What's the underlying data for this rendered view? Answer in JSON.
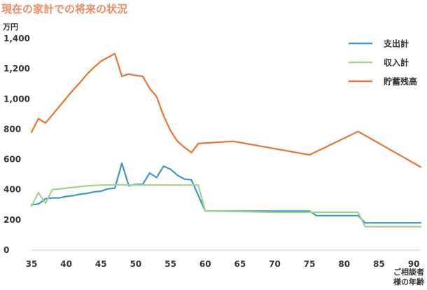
{
  "chart_data": {
    "type": "line",
    "title": "現在の家計での将来の状況",
    "ylabel": "万円",
    "xlabel": "ご相談者\n様の年齢",
    "xlim": [
      35,
      91
    ],
    "ylim": [
      0,
      1400
    ],
    "xticks": [
      35,
      40,
      45,
      50,
      55,
      60,
      65,
      70,
      75,
      80,
      85,
      90
    ],
    "yticks": [
      0,
      200,
      400,
      600,
      800,
      1000,
      1200,
      1400
    ],
    "ytick_labels": [
      "0",
      "200",
      "400",
      "600",
      "800",
      "1,000",
      "1,200",
      "1,400"
    ],
    "grid": false,
    "legend_position": "top-right",
    "series": [
      {
        "name": "支出計",
        "color": "#3a98c6",
        "points": [
          [
            35,
            300
          ],
          [
            36,
            305
          ],
          [
            37,
            340
          ],
          [
            38,
            345
          ],
          [
            39,
            345
          ],
          [
            40,
            355
          ],
          [
            41,
            360
          ],
          [
            42,
            370
          ],
          [
            43,
            375
          ],
          [
            44,
            385
          ],
          [
            45,
            390
          ],
          [
            46,
            405
          ],
          [
            47,
            410
          ],
          [
            48,
            575
          ],
          [
            49,
            425
          ],
          [
            50,
            435
          ],
          [
            51,
            435
          ],
          [
            52,
            510
          ],
          [
            53,
            480
          ],
          [
            54,
            555
          ],
          [
            55,
            535
          ],
          [
            56,
            495
          ],
          [
            57,
            470
          ],
          [
            58,
            465
          ],
          [
            60,
            258
          ],
          [
            65,
            258
          ],
          [
            70,
            258
          ],
          [
            75,
            258
          ],
          [
            76,
            228
          ],
          [
            82,
            228
          ],
          [
            83,
            180
          ],
          [
            91,
            180
          ]
        ]
      },
      {
        "name": "収入計",
        "color": "#9fd48c",
        "points": [
          [
            35,
            290
          ],
          [
            36,
            380
          ],
          [
            37,
            310
          ],
          [
            38,
            400
          ],
          [
            39,
            405
          ],
          [
            40,
            410
          ],
          [
            41,
            415
          ],
          [
            42,
            420
          ],
          [
            43,
            425
          ],
          [
            44,
            428
          ],
          [
            45,
            430
          ],
          [
            46,
            430
          ],
          [
            47,
            432
          ],
          [
            48,
            432
          ],
          [
            49,
            430
          ],
          [
            50,
            430
          ],
          [
            55,
            430
          ],
          [
            59,
            430
          ],
          [
            60,
            258
          ],
          [
            65,
            255
          ],
          [
            70,
            250
          ],
          [
            75,
            250
          ],
          [
            82,
            250
          ],
          [
            83,
            155
          ],
          [
            91,
            155
          ]
        ]
      },
      {
        "name": "貯蓄残高",
        "color": "#e87533",
        "points": [
          [
            35,
            780
          ],
          [
            36,
            870
          ],
          [
            37,
            840
          ],
          [
            38,
            895
          ],
          [
            39,
            950
          ],
          [
            40,
            1005
          ],
          [
            41,
            1060
          ],
          [
            42,
            1110
          ],
          [
            43,
            1165
          ],
          [
            44,
            1210
          ],
          [
            45,
            1250
          ],
          [
            46,
            1275
          ],
          [
            47,
            1300
          ],
          [
            48,
            1150
          ],
          [
            49,
            1165
          ],
          [
            50,
            1155
          ],
          [
            51,
            1150
          ],
          [
            52,
            1070
          ],
          [
            53,
            1015
          ],
          [
            54,
            890
          ],
          [
            55,
            790
          ],
          [
            56,
            720
          ],
          [
            57,
            680
          ],
          [
            58,
            645
          ],
          [
            59,
            705
          ],
          [
            64,
            720
          ],
          [
            75,
            630
          ],
          [
            82,
            785
          ],
          [
            91,
            550
          ]
        ]
      }
    ]
  }
}
